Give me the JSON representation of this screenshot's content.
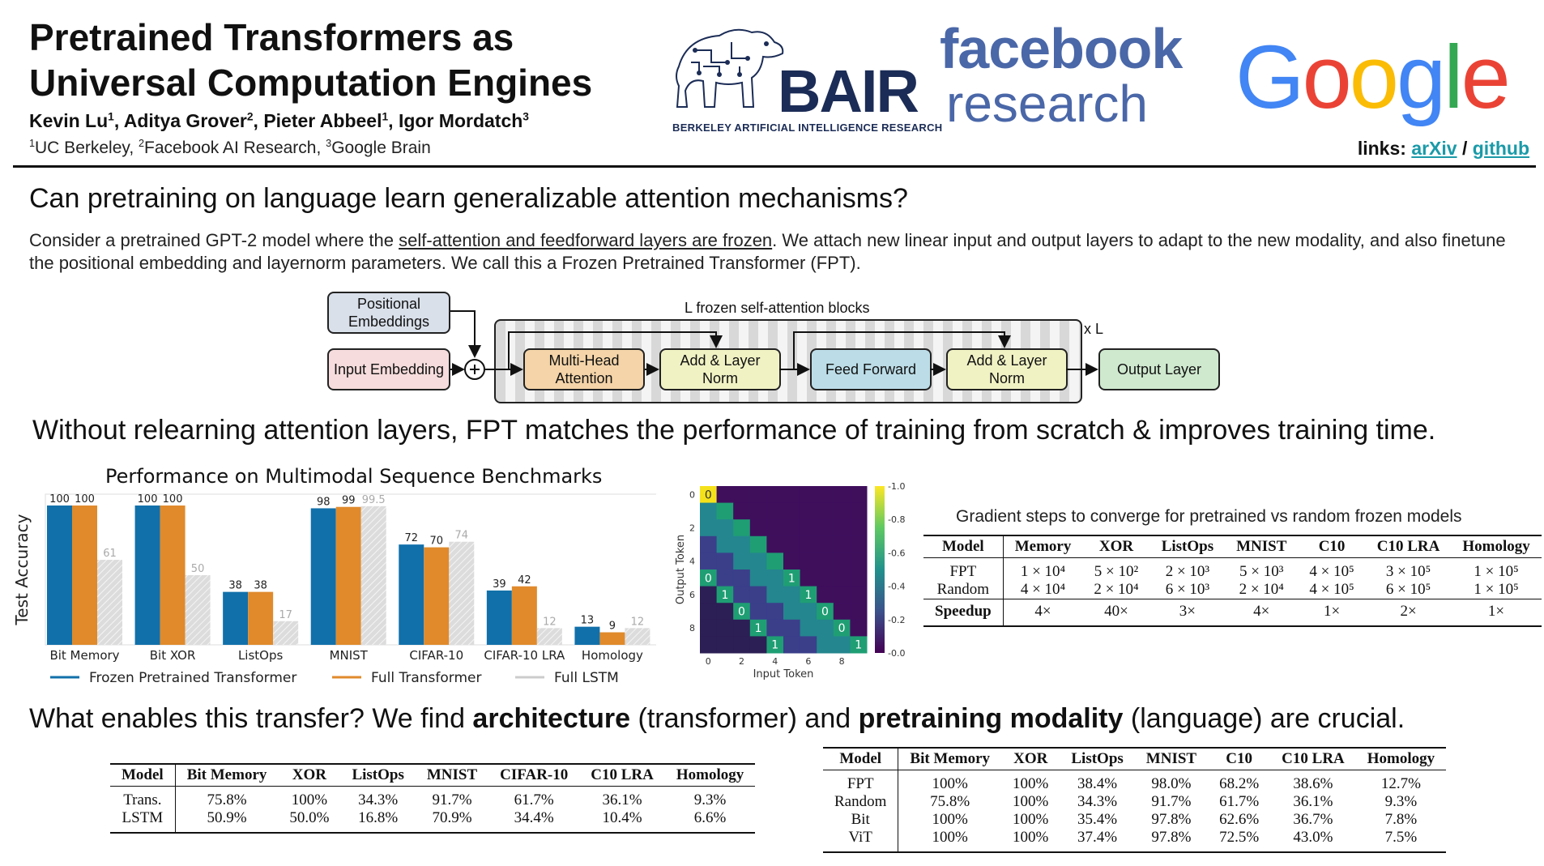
{
  "header": {
    "title_line1": "Pretrained Transformers as",
    "title_line2": "Universal Computation Engines",
    "authors": [
      {
        "name": "Kevin Lu",
        "aff": "1"
      },
      {
        "name": "Aditya Grover",
        "aff": "2"
      },
      {
        "name": "Pieter Abbeel",
        "aff": "1"
      },
      {
        "name": "Igor Mordatch",
        "aff": "3"
      }
    ],
    "affiliations": [
      {
        "num": "1",
        "name": "UC Berkeley,"
      },
      {
        "num": "2",
        "name": "Facebook AI Research,"
      },
      {
        "num": "3",
        "name": "Google Brain"
      }
    ],
    "links_label": "links:",
    "link_arxiv": "arXiv",
    "link_sep": "/",
    "link_github": "github",
    "logos": {
      "bair": "BAIR",
      "bair_sub": "BERKELEY ARTIFICIAL INTELLIGENCE RESEARCH",
      "fb1": "facebook",
      "fb2": "research",
      "google": [
        "G",
        "o",
        "o",
        "g",
        "l",
        "e"
      ],
      "google_colors": [
        "#4285F4",
        "#EA4335",
        "#FBBC05",
        "#4285F4",
        "#34A853",
        "#EA4335"
      ]
    }
  },
  "section1": {
    "heading": "Can pretraining on language learn generalizable attention mechanisms?",
    "text_a": "Consider a pretrained GPT-2 model where the ",
    "text_u": "self-attention and feedforward layers are frozen",
    "text_b": ". We attach new linear input and output layers to adapt to the new modality, and also finetune the positional embedding and layernorm parameters. We call this a Frozen Pretrained Transformer (FPT)."
  },
  "diagram": {
    "pos_emb": "Positional Embeddings",
    "input_emb": "Input Embedding",
    "frozen_label": "L frozen self-attention blocks",
    "mha": "Multi-Head Attention",
    "addnorm1": "Add & Layer Norm",
    "ff": "Feed Forward",
    "addnorm2": "Add & Layer Norm",
    "output": "Output Layer",
    "times_l": "x L",
    "colors": {
      "pos": "#d9e0ea",
      "input": "#f6dcdc",
      "mha": "#f4d4a8",
      "add": "#f1f2c4",
      "ff": "#bcdde8",
      "out": "#cfe9cf"
    }
  },
  "section2": {
    "heading": "Without relearning attention layers, FPT matches the performance of training from scratch & improves training time."
  },
  "chart_data": [
    {
      "type": "bar",
      "title": "Performance on Multimodal Sequence Benchmarks",
      "ylabel": "Test Accuracy",
      "xlabel": "",
      "ylim": [
        0,
        100
      ],
      "categories": [
        "Bit Memory",
        "Bit XOR",
        "ListOps",
        "MNIST",
        "CIFAR-10",
        "CIFAR-10 LRA",
        "Homology"
      ],
      "series": [
        {
          "name": "Frozen Pretrained Transformer",
          "color": "#1170aa",
          "values": [
            100,
            100,
            38,
            98,
            72,
            39,
            13
          ],
          "labels": [
            "100",
            "100",
            "38",
            "98",
            "72",
            "39",
            "13"
          ]
        },
        {
          "name": "Full Transformer",
          "color": "#e08a2c",
          "values": [
            100,
            100,
            38,
            99,
            70,
            42,
            9
          ],
          "labels": [
            "100",
            "100",
            "38",
            "99",
            "70",
            "42",
            "9"
          ]
        },
        {
          "name": "Full LSTM",
          "color": "#d3d3d3",
          "values": [
            61,
            50,
            17,
            99.5,
            74,
            12,
            12
          ],
          "labels": [
            "61",
            "50",
            "17",
            "99.5",
            "74",
            "12",
            "12"
          ]
        }
      ]
    },
    {
      "type": "heatmap",
      "xlabel": "Input Token",
      "ylabel": "Output Token",
      "xticks": [
        "0",
        "2",
        "4",
        "6",
        "8"
      ],
      "yticks": [
        "0",
        "2",
        "4",
        "6",
        "8"
      ],
      "colorbar_ticks": [
        "1.0",
        "0.8",
        "0.6",
        "0.4",
        "0.2",
        "0.0"
      ],
      "annotations": [
        {
          "row": 0,
          "col": 0,
          "text": "0"
        },
        {
          "row": 5,
          "col": 0,
          "text": "0"
        },
        {
          "row": 5,
          "col": 5,
          "text": "1"
        },
        {
          "row": 6,
          "col": 1,
          "text": "1"
        },
        {
          "row": 6,
          "col": 6,
          "text": "1"
        },
        {
          "row": 7,
          "col": 2,
          "text": "0"
        },
        {
          "row": 7,
          "col": 7,
          "text": "0"
        },
        {
          "row": 8,
          "col": 3,
          "text": "1"
        },
        {
          "row": 8,
          "col": 8,
          "text": "0"
        },
        {
          "row": 9,
          "col": 4,
          "text": "1"
        },
        {
          "row": 9,
          "col": 9,
          "text": "1"
        }
      ]
    }
  ],
  "table_steps": {
    "caption": "Gradient steps to converge for pretrained vs random frozen models",
    "headers": [
      "Model",
      "Memory",
      "XOR",
      "ListOps",
      "MNIST",
      "C10",
      "C10 LRA",
      "Homology"
    ],
    "rows": [
      [
        "FPT",
        "1 × 10⁴",
        "5 × 10²",
        "2 × 10³",
        "5 × 10³",
        "4 × 10⁵",
        "3 × 10⁵",
        "1 × 10⁵"
      ],
      [
        "Random",
        "4 × 10⁴",
        "2 × 10⁴",
        "6 × 10³",
        "2 × 10⁴",
        "4 × 10⁵",
        "6 × 10⁵",
        "1 × 10⁵"
      ]
    ],
    "speedup": [
      "Speedup",
      "4×",
      "40×",
      "3×",
      "4×",
      "1×",
      "2×",
      "1×"
    ]
  },
  "section3": {
    "h_a": "What enables this transfer? We find ",
    "h_b": "architecture",
    "h_c": " (transformer) and ",
    "h_d": "pretraining modality",
    "h_e": " (language) are crucial."
  },
  "table_arch": {
    "headers": [
      "Model",
      "Bit Memory",
      "XOR",
      "ListOps",
      "MNIST",
      "CIFAR-10",
      "C10 LRA",
      "Homology"
    ],
    "rows": [
      [
        "Trans.",
        "75.8%",
        "100%",
        "34.3%",
        "91.7%",
        "61.7%",
        "36.1%",
        "9.3%"
      ],
      [
        "LSTM",
        "50.9%",
        "50.0%",
        "16.8%",
        "70.9%",
        "34.4%",
        "10.4%",
        "6.6%"
      ]
    ]
  },
  "table_modality": {
    "headers": [
      "Model",
      "Bit Memory",
      "XOR",
      "ListOps",
      "MNIST",
      "C10",
      "C10 LRA",
      "Homology"
    ],
    "rows": [
      [
        "FPT",
        "100%",
        "100%",
        "38.4%",
        "98.0%",
        "68.2%",
        "38.6%",
        "12.7%"
      ],
      [
        "Random",
        "75.8%",
        "100%",
        "34.3%",
        "91.7%",
        "61.7%",
        "36.1%",
        "9.3%"
      ],
      [
        "Bit",
        "100%",
        "100%",
        "35.4%",
        "97.8%",
        "62.6%",
        "36.7%",
        "7.8%"
      ],
      [
        "ViT",
        "100%",
        "100%",
        "37.4%",
        "97.8%",
        "72.5%",
        "43.0%",
        "7.5%"
      ]
    ]
  }
}
